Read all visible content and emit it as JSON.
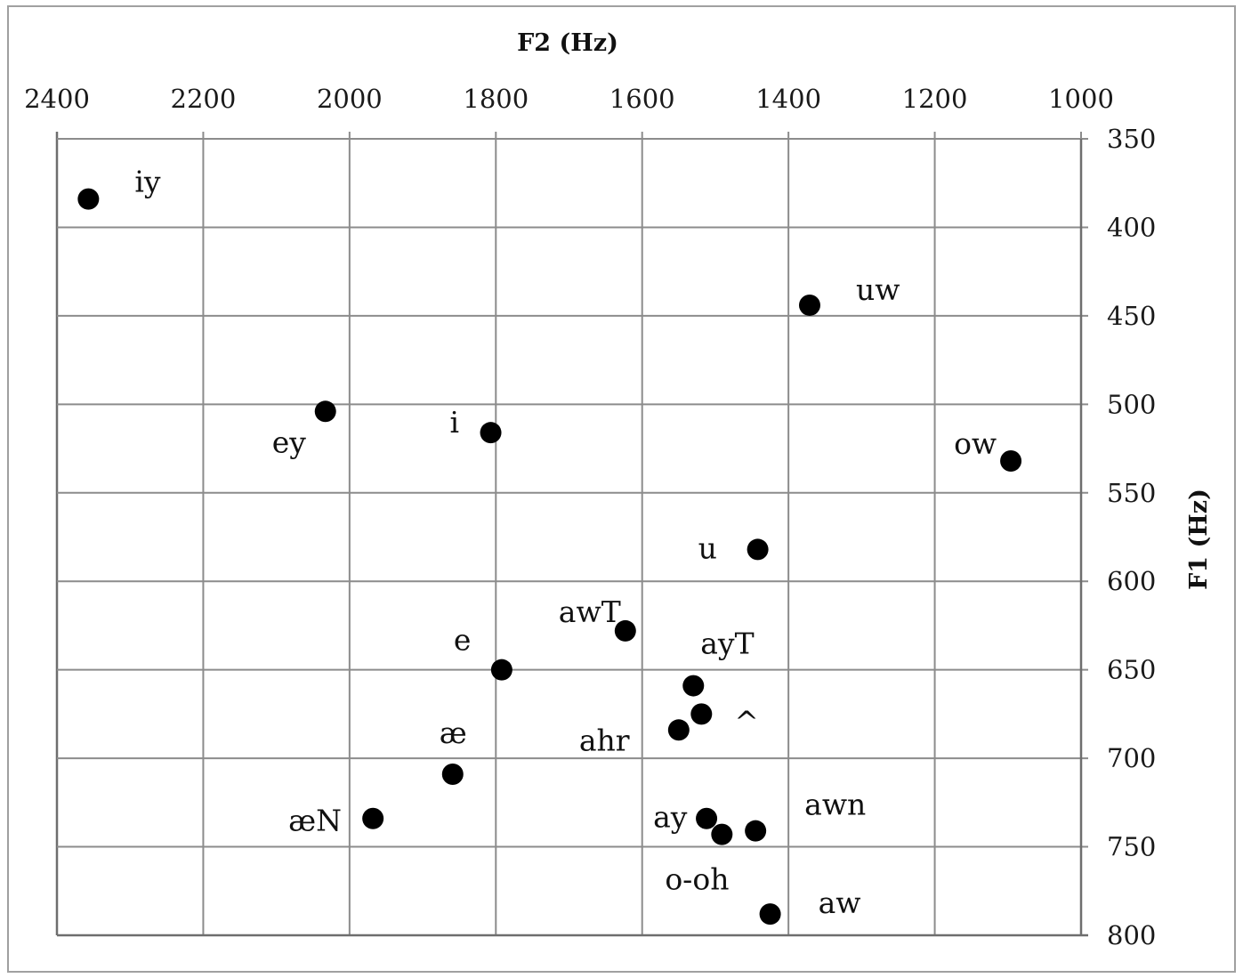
{
  "chart_data": {
    "type": "scatter",
    "title": "",
    "xlabel": "F2 (Hz)",
    "ylabel": "F1 (Hz)",
    "xlim": [
      2400,
      1000
    ],
    "ylim": [
      350,
      800
    ],
    "x_reversed": true,
    "y_reversed": true,
    "x_axis_position": "top",
    "y_axis_position": "right",
    "xticks": [
      2400,
      2200,
      2000,
      1800,
      1600,
      1400,
      1200,
      1000
    ],
    "yticks": [
      350,
      400,
      450,
      500,
      550,
      600,
      650,
      700,
      750,
      800
    ],
    "grid": true,
    "legend": "none",
    "marker_color": "#000000",
    "points": [
      {
        "label": "iy",
        "f2": 2357,
        "f1": 384
      },
      {
        "label": "uw",
        "f2": 1371,
        "f1": 444
      },
      {
        "label": "ey",
        "f2": 2033,
        "f1": 504
      },
      {
        "label": "i",
        "f2": 1807,
        "f1": 516
      },
      {
        "label": "ow",
        "f2": 1096,
        "f1": 532
      },
      {
        "label": "u",
        "f2": 1442,
        "f1": 582
      },
      {
        "label": "awT",
        "f2": 1623,
        "f1": 628
      },
      {
        "label": "e",
        "f2": 1792,
        "f1": 650
      },
      {
        "label": "ayT",
        "f2": 1530,
        "f1": 659
      },
      {
        "label": "^",
        "f2": 1519,
        "f1": 675
      },
      {
        "label": "ahr",
        "f2": 1550,
        "f1": 684
      },
      {
        "label": "æ",
        "f2": 1859,
        "f1": 709
      },
      {
        "label": "æN",
        "f2": 1968,
        "f1": 734
      },
      {
        "label": "ay",
        "f2": 1512,
        "f1": 734
      },
      {
        "label": "awn",
        "f2": 1445,
        "f1": 741
      },
      {
        "label": "o-oh",
        "f2": 1491,
        "f1": 743
      },
      {
        "label": "aw",
        "f2": 1425,
        "f1": 788
      }
    ]
  }
}
